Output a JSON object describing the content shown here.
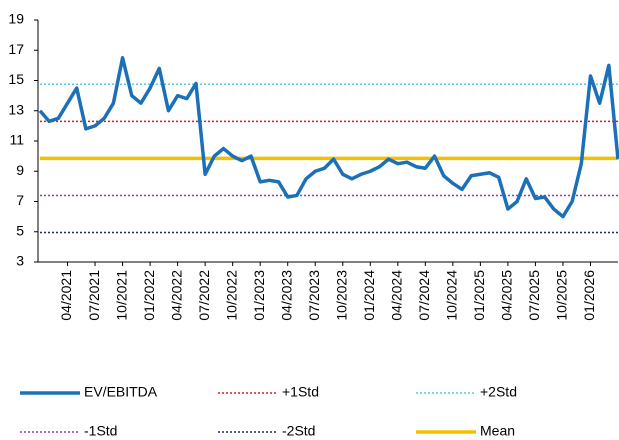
{
  "chart_data": {
    "type": "line",
    "x": [
      "01/2021",
      "02/2021",
      "03/2021",
      "04/2021",
      "05/2021",
      "06/2021",
      "07/2021",
      "08/2021",
      "09/2021",
      "10/2021",
      "11/2021",
      "12/2021",
      "01/2022",
      "02/2022",
      "03/2022",
      "04/2022",
      "05/2022",
      "06/2022",
      "07/2022",
      "08/2022",
      "09/2022",
      "10/2022",
      "11/2022",
      "12/2022",
      "01/2023",
      "02/2023",
      "03/2023",
      "04/2023",
      "05/2023",
      "06/2023",
      "07/2023",
      "08/2023",
      "09/2023",
      "10/2023",
      "11/2023",
      "12/2023",
      "01/2024",
      "02/2024",
      "03/2024",
      "04/2024",
      "05/2024",
      "06/2024",
      "07/2024",
      "08/2024",
      "09/2024",
      "10/2024",
      "11/2024",
      "12/2024",
      "01/2025",
      "02/2025",
      "03/2025",
      "04/2025",
      "05/2025",
      "06/2025",
      "07/2025",
      "08/2025",
      "09/2025",
      "10/2025",
      "11/2025",
      "12/2025",
      "01/2026",
      "02/2026",
      "03/2026",
      "04/2026"
    ],
    "xticks": [
      "04/2021",
      "07/2021",
      "10/2021",
      "01/2022",
      "04/2022",
      "07/2022",
      "10/2022",
      "01/2023",
      "04/2023",
      "07/2023",
      "10/2023",
      "01/2024",
      "04/2024",
      "07/2024",
      "10/2024",
      "01/2025",
      "04/2025",
      "07/2025",
      "10/2025",
      "01/2026"
    ],
    "ylim": [
      3,
      19
    ],
    "yticks": [
      3,
      5,
      7,
      9,
      11,
      13,
      15,
      17,
      19
    ],
    "series": [
      {
        "name": "EV/EBITDA",
        "color": "#1b70b8",
        "values": [
          13,
          12.3,
          12.5,
          13.5,
          14.5,
          11.8,
          12,
          12.5,
          13.5,
          16.5,
          14,
          13.5,
          14.5,
          15.8,
          13,
          14,
          13.8,
          14.8,
          8.8,
          10,
          10.5,
          10,
          9.7,
          10,
          8.3,
          8.4,
          8.3,
          7.3,
          7.4,
          8.5,
          9,
          9.2,
          9.8,
          8.8,
          8.5,
          8.8,
          9,
          9.3,
          9.8,
          9.5,
          9.6,
          9.3,
          9.2,
          10,
          8.7,
          8.2,
          7.8,
          8.7,
          8.8,
          8.9,
          8.6,
          6.5,
          7,
          8.5,
          7.2,
          7.3,
          6.5,
          6,
          7,
          9.5,
          15.3,
          13.5,
          16,
          9.8
        ]
      },
      {
        "name": "+1Std",
        "color": "#e3161c",
        "dash": "dotted",
        "value": 12.3
      },
      {
        "name": "+2Std",
        "color": "#5bc6ea",
        "dash": "dotted",
        "value": 14.75
      },
      {
        "name": "-1Std",
        "color": "#8e3fb5",
        "dash": "dotted",
        "value": 7.4
      },
      {
        "name": "-2Std",
        "color": "#1f2a6b",
        "dash": "dotted",
        "value": 4.95
      },
      {
        "name": "Mean",
        "color": "#f5c000",
        "value": 9.85
      }
    ]
  }
}
